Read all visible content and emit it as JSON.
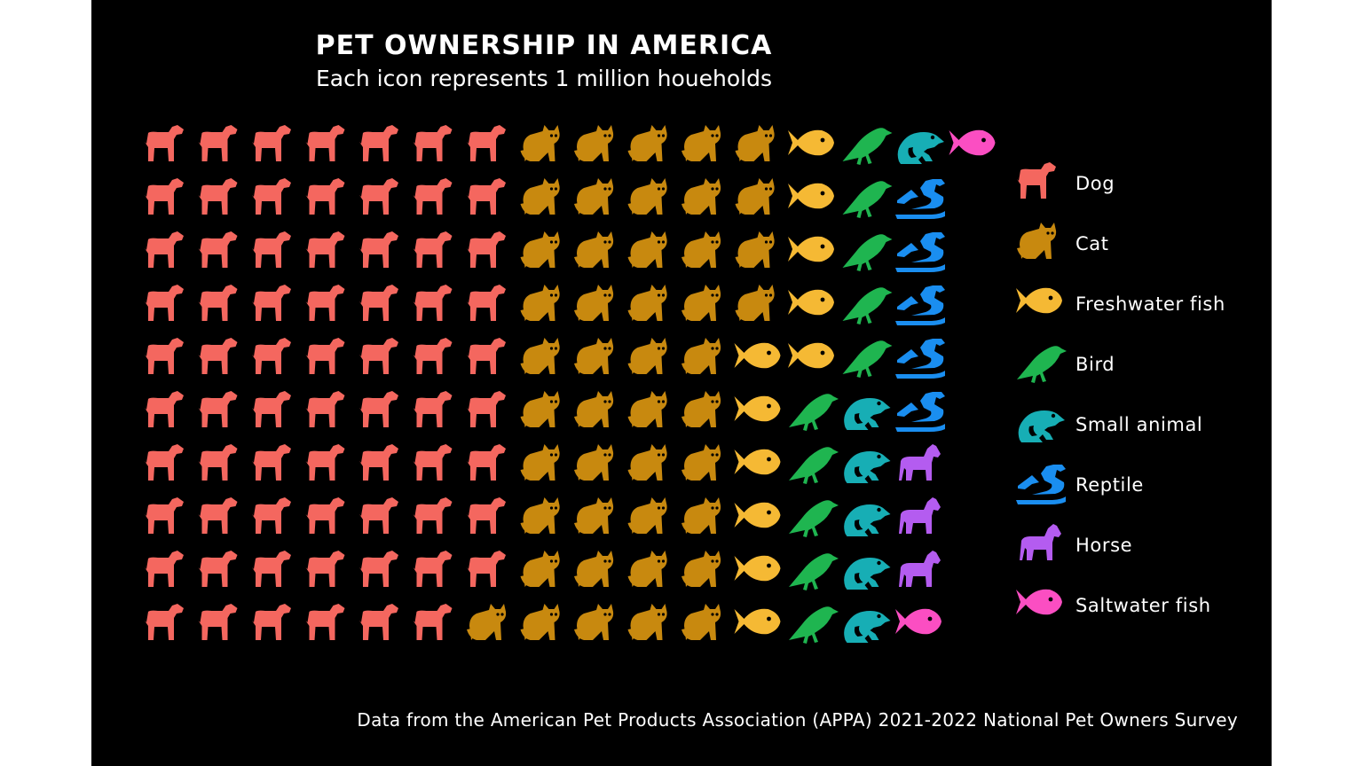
{
  "chart_data": {
    "type": "pictogram",
    "title": "PET OWNERSHIP IN AMERICA",
    "subtitle": "Each icon represents 1 million houeholds",
    "source": "Data from the American Pet Products Association (APPA) 2021-2022 National Pet Owners Survey",
    "unit": "million households",
    "legend_position": "right",
    "series": [
      {
        "name": "Dog",
        "value": 69,
        "color": "#f4675f",
        "icon": "dog-icon"
      },
      {
        "name": "Cat",
        "value": 45,
        "color": "#c8890f",
        "icon": "cat-icon"
      },
      {
        "name": "Freshwater fish",
        "value": 11,
        "color": "#f5b934",
        "icon": "fish-icon"
      },
      {
        "name": "Bird",
        "value": 10,
        "color": "#1fb550",
        "icon": "bird-icon"
      },
      {
        "name": "Small animal",
        "value": 6,
        "color": "#17aeb5",
        "icon": "frog-icon"
      },
      {
        "name": "Reptile",
        "value": 5,
        "color": "#1a8ef0",
        "icon": "reptile-icon"
      },
      {
        "name": "Horse",
        "value": 3,
        "color": "#b45cf0",
        "icon": "horse-icon"
      },
      {
        "name": "Saltwater fish",
        "value": 2,
        "color": "#fb4ec2",
        "icon": "fish-icon"
      }
    ]
  }
}
